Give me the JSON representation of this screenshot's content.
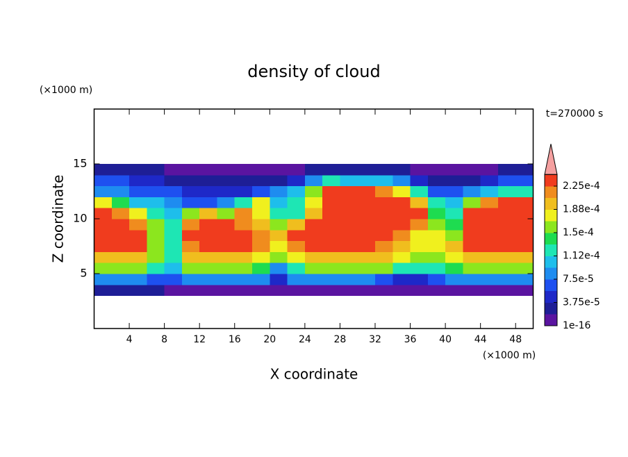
{
  "chart_data": {
    "type": "heatmap",
    "title": "density of cloud",
    "xlabel": "X coordinate",
    "ylabel": "Z coordinate",
    "x_unit": "(×1000 m)",
    "y_unit": "(×1000 m)",
    "time_label": "t=270000 s",
    "xlim": [
      0,
      50
    ],
    "ylim": [
      0,
      20
    ],
    "xticks": [
      4,
      8,
      12,
      16,
      20,
      24,
      28,
      32,
      36,
      40,
      44,
      48
    ],
    "yticks": [
      5,
      10,
      15
    ],
    "x": [
      1,
      3,
      5,
      7,
      9,
      11,
      13,
      15,
      17,
      19,
      21,
      23,
      25,
      27,
      29,
      31,
      33,
      35,
      37,
      39,
      41,
      43,
      45,
      47,
      49
    ],
    "y": [
      3.5,
      4.5,
      5.5,
      6.5,
      7.5,
      8.5,
      9.5,
      10.5,
      11.5,
      12.5,
      13.5,
      14.5
    ],
    "z": [
      [
        2.8e-05,
        2.8e-05,
        2.8e-05,
        2.8e-05,
        1e-05,
        1e-05,
        1e-05,
        1e-05,
        1e-05,
        1e-05,
        1e-05,
        1e-05,
        1e-05,
        1e-05,
        1e-05,
        1e-05,
        1e-05,
        1e-05,
        1e-05,
        1e-05,
        1e-05,
        1e-05,
        1e-05,
        1e-05,
        1e-05
      ],
      [
        8.4e-05,
        8.4e-05,
        8.4e-05,
        6.5e-05,
        6.5e-05,
        8.4e-05,
        8.4e-05,
        8.4e-05,
        8.4e-05,
        8.4e-05,
        4.7e-05,
        8.4e-05,
        8.4e-05,
        8.4e-05,
        8.4e-05,
        8.4e-05,
        6.5e-05,
        4.7e-05,
        4.7e-05,
        6.5e-05,
        8.4e-05,
        8.4e-05,
        8.4e-05,
        8.4e-05,
        8.4e-05
      ],
      [
        0.000159,
        0.000159,
        0.000159,
        0.000122,
        0.000103,
        0.000159,
        0.000159,
        0.000159,
        0.000159,
        0.00014,
        8.4e-05,
        0.000122,
        0.000159,
        0.000159,
        0.000159,
        0.000159,
        0.000159,
        0.000122,
        0.000122,
        0.000122,
        0.00014,
        0.000159,
        0.000159,
        0.000159,
        0.000159
      ],
      [
        0.000197,
        0.000197,
        0.000197,
        0.000159,
        0.000122,
        0.000197,
        0.000197,
        0.000197,
        0.000197,
        0.000178,
        0.000159,
        0.000178,
        0.000197,
        0.000197,
        0.000197,
        0.000197,
        0.000197,
        0.000178,
        0.000159,
        0.000159,
        0.000178,
        0.000197,
        0.000197,
        0.000197,
        0.000197
      ],
      [
        0.000234,
        0.000234,
        0.000234,
        0.000159,
        0.000122,
        0.000215,
        0.000234,
        0.000234,
        0.000234,
        0.000215,
        0.000178,
        0.000215,
        0.000234,
        0.000234,
        0.000234,
        0.000234,
        0.000215,
        0.000197,
        0.000178,
        0.000178,
        0.000197,
        0.000234,
        0.000234,
        0.000234,
        0.000234
      ],
      [
        0.000234,
        0.000234,
        0.000234,
        0.000159,
        0.000122,
        0.000234,
        0.000234,
        0.000234,
        0.000234,
        0.000215,
        0.000197,
        0.000234,
        0.000234,
        0.000234,
        0.000234,
        0.000234,
        0.000234,
        0.000215,
        0.000178,
        0.000178,
        0.000159,
        0.000234,
        0.000234,
        0.000234,
        0.000234
      ],
      [
        0.000234,
        0.000234,
        0.000215,
        0.000159,
        0.000122,
        0.000215,
        0.000234,
        0.000234,
        0.000215,
        0.000197,
        0.000159,
        0.000197,
        0.000234,
        0.000234,
        0.000234,
        0.000234,
        0.000234,
        0.000234,
        0.000215,
        0.000159,
        0.00014,
        0.000234,
        0.000234,
        0.000234,
        0.000234
      ],
      [
        0.000234,
        0.000215,
        0.000178,
        0.000122,
        0.000103,
        0.000159,
        0.000197,
        0.000159,
        0.000215,
        0.000178,
        0.000122,
        0.000122,
        0.000197,
        0.000234,
        0.000234,
        0.000234,
        0.000234,
        0.000234,
        0.000234,
        0.00014,
        0.000122,
        0.000234,
        0.000234,
        0.000234,
        0.000234
      ],
      [
        0.000178,
        0.00014,
        0.000103,
        0.000103,
        8.4e-05,
        6.5e-05,
        6.5e-05,
        8.4e-05,
        0.000122,
        0.000178,
        0.000103,
        0.000122,
        0.000178,
        0.000234,
        0.000234,
        0.000234,
        0.000234,
        0.000234,
        0.000197,
        0.000122,
        0.000103,
        0.000159,
        0.000215,
        0.000234,
        0.000234
      ],
      [
        8.4e-05,
        8.4e-05,
        6.5e-05,
        6.5e-05,
        6.5e-05,
        4.7e-05,
        4.7e-05,
        4.7e-05,
        4.7e-05,
        6.5e-05,
        8.4e-05,
        0.000103,
        0.000159,
        0.000234,
        0.000234,
        0.000234,
        0.000215,
        0.000178,
        0.000122,
        6.5e-05,
        6.5e-05,
        8.4e-05,
        0.000103,
        0.000122,
        0.000122
      ],
      [
        6.5e-05,
        6.5e-05,
        4.7e-05,
        4.7e-05,
        2.8e-05,
        2.8e-05,
        2.8e-05,
        2.8e-05,
        2.8e-05,
        2.8e-05,
        2.8e-05,
        4.7e-05,
        8.4e-05,
        0.000122,
        0.000103,
        0.000103,
        0.000103,
        8.4e-05,
        4.7e-05,
        2.8e-05,
        2.8e-05,
        2.8e-05,
        4.7e-05,
        6.5e-05,
        6.5e-05
      ],
      [
        2.8e-05,
        2.8e-05,
        2.8e-05,
        2.8e-05,
        1e-05,
        1e-05,
        1e-05,
        1e-05,
        1e-05,
        1e-05,
        1e-05,
        1e-05,
        2.8e-05,
        2.8e-05,
        2.8e-05,
        2.8e-05,
        2.8e-05,
        2.8e-05,
        1e-05,
        1e-05,
        1e-05,
        1e-05,
        1e-05,
        2.8e-05,
        2.8e-05
      ]
    ],
    "colorbar": {
      "levels": [
        1e-16,
        1.875e-05,
        3.75e-05,
        5.625e-05,
        7.5e-05,
        9.375e-05,
        0.0001125,
        0.00013125,
        0.00015,
        0.00016875,
        0.0001875,
        0.00020625,
        0.000225,
        0.00024375
      ],
      "colors": [
        "#5a14a0",
        "#1e1e96",
        "#1e28c8",
        "#1e50f0",
        "#1e8cf0",
        "#1ebeeb",
        "#1ee6b4",
        "#1edc50",
        "#8ce61e",
        "#f0f01e",
        "#f0be1e",
        "#f08c1e",
        "#f03c1e"
      ],
      "over_color": "#f5a0a0",
      "ticks": [
        1e-16,
        {
          "value": 3.75e-05,
          "label": "3.75e-5"
        },
        {
          "value": 7.5e-05,
          "label": "7.5e-5"
        },
        {
          "value": 0.0001125,
          "label": "1.12e-4"
        },
        {
          "value": 0.00015,
          "label": "1.5e-4"
        },
        {
          "value": 0.0001875,
          "label": "1.88e-4"
        },
        {
          "value": 0.000225,
          "label": "2.25e-4"
        }
      ]
    }
  }
}
